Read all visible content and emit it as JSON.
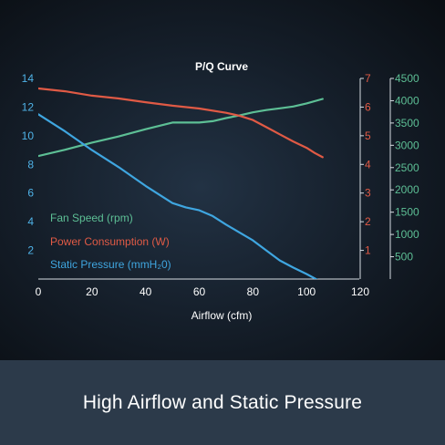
{
  "banner": {
    "caption": "High Airflow and Static Pressure"
  },
  "chart_data": {
    "type": "line",
    "title": "P/Q Curve",
    "xlabel": "Airflow (cfm)",
    "xlim": [
      0,
      120
    ],
    "x_ticks": [
      0,
      20,
      40,
      60,
      80,
      100,
      120
    ],
    "axes": {
      "left": {
        "lim": [
          0,
          14
        ],
        "ticks": [
          2,
          4,
          6,
          8,
          10,
          12,
          14
        ],
        "color": "#4fb3e8"
      },
      "right1": {
        "lim": [
          0,
          7
        ],
        "ticks": [
          1,
          2,
          3,
          4,
          5,
          6,
          7
        ],
        "color": "#e05a45"
      },
      "right2": {
        "lim": [
          0,
          4500
        ],
        "ticks": [
          500,
          1000,
          1500,
          2000,
          2500,
          3000,
          3500,
          4000,
          4500
        ],
        "color": "#5dbf95"
      }
    },
    "legend": {
      "placement": "lower-left",
      "entries": [
        {
          "label": "Fan Speed (rpm)",
          "color": "#5dbf95"
        },
        {
          "label": "Power Consumption (W)",
          "color": "#e05a45"
        },
        {
          "label": "Static Pressure (mmH₂0)",
          "color": "#3fa6e0"
        }
      ]
    },
    "series": [
      {
        "name": "Fan Speed (rpm)",
        "axis": "right2",
        "color": "#5dbf95",
        "x": [
          0,
          10,
          20,
          30,
          40,
          50,
          55,
          60,
          65,
          70,
          75,
          80,
          85,
          90,
          95,
          100,
          106
        ],
        "values": [
          2760,
          2900,
          3060,
          3200,
          3360,
          3510,
          3510,
          3510,
          3540,
          3610,
          3670,
          3740,
          3790,
          3830,
          3870,
          3940,
          4040
        ]
      },
      {
        "name": "Power Consumption (W)",
        "axis": "right1",
        "color": "#e05a45",
        "x": [
          0,
          10,
          20,
          30,
          40,
          50,
          60,
          70,
          75,
          80,
          85,
          90,
          95,
          100,
          103,
          106
        ],
        "values": [
          6.65,
          6.55,
          6.4,
          6.3,
          6.17,
          6.05,
          5.95,
          5.8,
          5.7,
          5.55,
          5.3,
          5.05,
          4.8,
          4.58,
          4.4,
          4.25
        ]
      },
      {
        "name": "Static Pressure (mmH₂0)",
        "axis": "left",
        "color": "#3fa6e0",
        "x": [
          0,
          10,
          20,
          30,
          40,
          50,
          55,
          60,
          65,
          70,
          80,
          85,
          90,
          95,
          100,
          103,
          106
        ],
        "values": [
          11.5,
          10.3,
          9.0,
          7.8,
          6.5,
          5.3,
          5.0,
          4.8,
          4.4,
          3.8,
          2.7,
          2.0,
          1.3,
          0.8,
          0.35,
          0.05,
          -0.25
        ]
      }
    ]
  }
}
